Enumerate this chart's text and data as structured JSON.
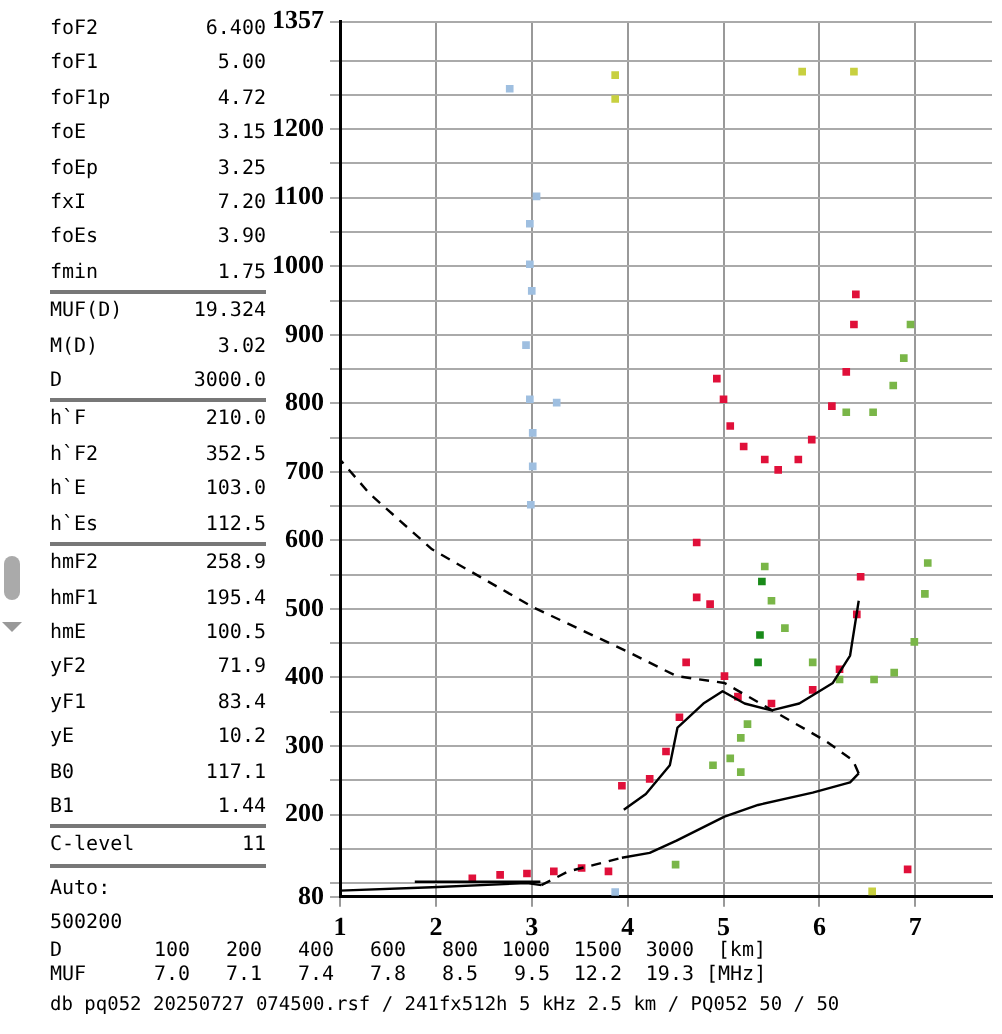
{
  "chart_data": {
    "type": "scatter",
    "xlim": [
      1,
      7.8
    ],
    "xticks": [
      1,
      2,
      3,
      4,
      5,
      6,
      7
    ],
    "ylim": [
      80,
      1357
    ],
    "yticks": [
      80,
      {
        "value": 100,
        "label": null
      },
      {
        "value": 150,
        "label": null
      },
      200,
      {
        "value": 250,
        "label": null
      },
      300,
      {
        "value": 350,
        "label": null
      },
      400,
      {
        "value": 450,
        "label": null
      },
      500,
      {
        "value": 550,
        "label": null
      },
      600,
      {
        "value": 650,
        "label": null
      },
      700,
      {
        "value": 750,
        "label": null
      },
      800,
      {
        "value": 850,
        "label": null
      },
      900,
      {
        "value": 950,
        "label": null
      },
      1000,
      {
        "value": 1050,
        "label": null
      },
      1100,
      {
        "value": 1150,
        "label": null
      },
      1200,
      {
        "value": 1250,
        "label": null
      },
      {
        "value": 1300,
        "label": null
      },
      1357
    ],
    "grid": true,
    "legend": false,
    "series": [
      {
        "marker": "square",
        "color": "#e0103a",
        "x": [
          5.0,
          5.07,
          5.21,
          5.43,
          5.57,
          5.78,
          5.92,
          6.13,
          6.28,
          6.36,
          6.38,
          4.93,
          3.94,
          4.23,
          4.4,
          4.54,
          4.61,
          4.72,
          4.72,
          4.86,
          5.01,
          5.15,
          5.5,
          5.93,
          6.21,
          6.39,
          6.43,
          2.38,
          2.67,
          2.95,
          3.23,
          3.52,
          3.8,
          6.92
        ],
        "values": [
          806,
          767,
          737,
          718,
          703,
          718,
          747,
          796,
          846,
          915,
          959,
          836,
          242,
          252,
          292,
          342,
          422,
          517,
          597,
          507,
          402,
          372,
          362,
          382,
          412,
          492,
          547,
          107,
          112,
          114,
          117,
          122,
          117,
          120
        ]
      },
      {
        "marker": "square",
        "color": "#7ab648",
        "x": [
          5.43,
          5.5,
          5.64,
          5.93,
          6.21,
          6.57,
          6.78,
          6.99,
          7.1,
          7.13,
          4.89,
          5.07,
          5.18,
          5.25,
          5.18,
          6.28,
          6.56,
          6.77,
          6.88,
          6.95,
          4.5
        ],
        "values": [
          562,
          512,
          472,
          422,
          397,
          397,
          407,
          452,
          522,
          567,
          272,
          282,
          312,
          332,
          262,
          787,
          787,
          826,
          866,
          915,
          127
        ]
      },
      {
        "marker": "square",
        "color": "#1a8a1a",
        "x": [
          5.36,
          5.38,
          5.4
        ],
        "values": [
          422,
          462,
          540
        ]
      },
      {
        "marker": "square",
        "color": "#9fbfe0",
        "x": [
          2.98,
          2.98,
          3.0,
          2.94,
          2.98,
          3.01,
          3.01,
          3.26,
          2.77,
          3.05,
          2.99,
          3.87
        ],
        "values": [
          1062,
          1003,
          964,
          885,
          806,
          757,
          708,
          801,
          1259,
          1102,
          652,
          87
        ]
      },
      {
        "marker": "square",
        "color": "#c8d040",
        "x": [
          3.87,
          3.87,
          5.82,
          6.36,
          6.55
        ],
        "values": [
          1279,
          1244,
          1284,
          1284,
          88
        ]
      },
      {
        "type": "line",
        "color": "#000000",
        "line_style": "solid",
        "x": [
          3.96,
          4.19,
          4.44,
          4.52,
          4.79,
          4.99,
          5.22,
          5.5,
          5.79,
          6.14,
          6.32,
          6.41
        ],
        "values": [
          207,
          230,
          272,
          327,
          362,
          380,
          362,
          352,
          362,
          392,
          432,
          512
        ]
      },
      {
        "type": "line",
        "color": "#000000",
        "line_style": "solid",
        "x": [
          1.78,
          2.4,
          3.09
        ],
        "values": [
          102,
          102,
          102
        ]
      },
      {
        "type": "line",
        "color": "#000000",
        "line_style": "solid",
        "x": [
          1.0,
          1.96,
          2.95,
          3.1
        ],
        "values": [
          89,
          94,
          100,
          97
        ]
      },
      {
        "type": "line",
        "color": "#000000",
        "line_style": "dashed",
        "x": [
          3.1,
          3.38,
          3.66,
          3.94
        ],
        "values": [
          97,
          117,
          127,
          137
        ]
      },
      {
        "type": "line",
        "color": "#000000",
        "line_style": "solid",
        "x": [
          3.94,
          4.23,
          4.51,
          5.01,
          5.36,
          5.93,
          6.32,
          6.41
        ],
        "values": [
          137,
          144,
          162,
          197,
          214,
          232,
          247,
          260
        ]
      },
      {
        "type": "line",
        "color": "#000000",
        "line_style": "dashed",
        "x": [
          6.41,
          6.35,
          6.07,
          5.01,
          4.51,
          4.01,
          3.02,
          1.96,
          1.31,
          1.0
        ],
        "values": [
          260,
          279,
          307,
          392,
          402,
          437,
          502,
          587,
          668,
          718
        ]
      }
    ],
    "annotations": [
      "foF2 6.400",
      "foF1 5.00",
      "foF1p 4.72",
      "foE 3.15",
      "foEp 3.25",
      "fxI 7.20",
      "foEs 3.90",
      "fmin 1.75",
      "MUF(D) 19.324",
      "M(D) 3.02",
      "D 3000.0",
      "h`F 210.0",
      "h`F2 352.5",
      "h`E 103.0",
      "h`Es 112.5",
      "hmF2 258.9",
      "hmF1 195.4",
      "hmE 100.5",
      "yF2 71.9",
      "yF1 83.4",
      "yE 10.2",
      "B0 117.1",
      "B1 1.44",
      "C-level 11",
      "Auto:",
      "500200",
      "D 100 200 400 600 800 1000 1500 3000 [km]",
      "MUF 7.0 7.1 7.4 7.8 8.5 9.5 12.2 19.3 [MHz]",
      "db pq052 20250727 074500.rsf / 241fx512h 5 kHz 2.5 km / PQ052 50 / 50"
    ]
  }
}
